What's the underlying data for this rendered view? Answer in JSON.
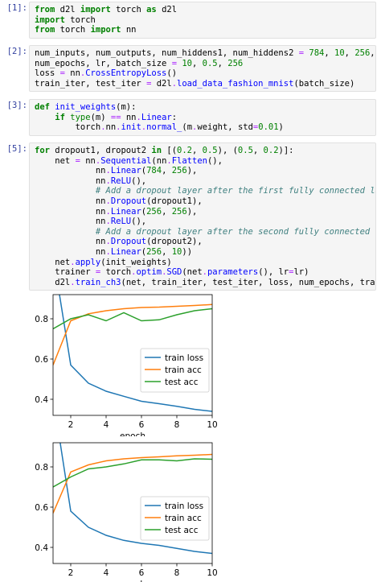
{
  "cells": [
    {
      "prompt": "[1]:",
      "lines": [
        [
          {
            "t": "from",
            "c": "kw"
          },
          {
            "t": " d2l "
          },
          {
            "t": "import",
            "c": "kw"
          },
          {
            "t": " torch "
          },
          {
            "t": "as",
            "c": "kw"
          },
          {
            "t": " d2l"
          }
        ],
        [
          {
            "t": "import",
            "c": "kw"
          },
          {
            "t": " torch"
          }
        ],
        [
          {
            "t": "from",
            "c": "kw"
          },
          {
            "t": " torch "
          },
          {
            "t": "import",
            "c": "kw"
          },
          {
            "t": " nn"
          }
        ]
      ]
    },
    {
      "prompt": "[2]:",
      "lines": [
        [
          {
            "t": "num_inputs, num_outputs, num_hiddens1, num_hiddens2 "
          },
          {
            "t": "=",
            "c": "op"
          },
          {
            "t": " "
          },
          {
            "t": "784",
            "c": "num"
          },
          {
            "t": ", "
          },
          {
            "t": "10",
            "c": "num"
          },
          {
            "t": ", "
          },
          {
            "t": "256",
            "c": "num"
          },
          {
            "t": ", "
          },
          {
            "t": "256",
            "c": "num"
          }
        ],
        [
          {
            "t": "num_epochs, lr, batch_size "
          },
          {
            "t": "=",
            "c": "op"
          },
          {
            "t": " "
          },
          {
            "t": "10",
            "c": "num"
          },
          {
            "t": ", "
          },
          {
            "t": "0.5",
            "c": "num"
          },
          {
            "t": ", "
          },
          {
            "t": "256",
            "c": "num"
          }
        ],
        [
          {
            "t": "loss "
          },
          {
            "t": "=",
            "c": "op"
          },
          {
            "t": " nn"
          },
          {
            "t": ".",
            "c": "op"
          },
          {
            "t": "CrossEntropyLoss",
            "c": "fn"
          },
          {
            "t": "()"
          }
        ],
        [
          {
            "t": "train_iter, test_iter "
          },
          {
            "t": "=",
            "c": "op"
          },
          {
            "t": " d2l"
          },
          {
            "t": ".",
            "c": "op"
          },
          {
            "t": "load_data_fashion_mnist",
            "c": "fn"
          },
          {
            "t": "(batch_size)"
          }
        ]
      ]
    },
    {
      "prompt": "[3]:",
      "lines": [
        [
          {
            "t": "def",
            "c": "kw"
          },
          {
            "t": " "
          },
          {
            "t": "init_weights",
            "c": "fn"
          },
          {
            "t": "(m):"
          }
        ],
        [
          {
            "t": "    "
          },
          {
            "t": "if",
            "c": "kw"
          },
          {
            "t": " "
          },
          {
            "t": "type",
            "c": "bi"
          },
          {
            "t": "(m) "
          },
          {
            "t": "==",
            "c": "op"
          },
          {
            "t": " nn"
          },
          {
            "t": ".",
            "c": "op"
          },
          {
            "t": "Linear",
            "c": "fn"
          },
          {
            "t": ":"
          }
        ],
        [
          {
            "t": "        torch"
          },
          {
            "t": ".",
            "c": "op"
          },
          {
            "t": "nn"
          },
          {
            "t": ".",
            "c": "op"
          },
          {
            "t": "init",
            "c": "fn"
          },
          {
            "t": ".",
            "c": "op"
          },
          {
            "t": "normal_",
            "c": "fn"
          },
          {
            "t": "(m"
          },
          {
            "t": ".",
            "c": "op"
          },
          {
            "t": "weight, std"
          },
          {
            "t": "=",
            "c": "op"
          },
          {
            "t": "0.01",
            "c": "num"
          },
          {
            "t": ")"
          }
        ]
      ]
    },
    {
      "prompt": "[5]:",
      "lines": [
        [
          {
            "t": "for",
            "c": "kw"
          },
          {
            "t": " dropout1, dropout2 "
          },
          {
            "t": "in",
            "c": "kw"
          },
          {
            "t": " [("
          },
          {
            "t": "0.2",
            "c": "num"
          },
          {
            "t": ", "
          },
          {
            "t": "0.5",
            "c": "num"
          },
          {
            "t": "), ("
          },
          {
            "t": "0.5",
            "c": "num"
          },
          {
            "t": ", "
          },
          {
            "t": "0.2",
            "c": "num"
          },
          {
            "t": ")]:"
          }
        ],
        [
          {
            "t": "    net "
          },
          {
            "t": "=",
            "c": "op"
          },
          {
            "t": " nn"
          },
          {
            "t": ".",
            "c": "op"
          },
          {
            "t": "Sequential",
            "c": "fn"
          },
          {
            "t": "(nn"
          },
          {
            "t": ".",
            "c": "op"
          },
          {
            "t": "Flatten",
            "c": "fn"
          },
          {
            "t": "(),"
          }
        ],
        [
          {
            "t": "            nn"
          },
          {
            "t": ".",
            "c": "op"
          },
          {
            "t": "Linear",
            "c": "fn"
          },
          {
            "t": "("
          },
          {
            "t": "784",
            "c": "num"
          },
          {
            "t": ", "
          },
          {
            "t": "256",
            "c": "num"
          },
          {
            "t": "),"
          }
        ],
        [
          {
            "t": "            nn"
          },
          {
            "t": ".",
            "c": "op"
          },
          {
            "t": "ReLU",
            "c": "fn"
          },
          {
            "t": "(),"
          }
        ],
        [
          {
            "t": "            "
          },
          {
            "t": "# Add a dropout layer after the first fully connected layer",
            "c": "cm"
          }
        ],
        [
          {
            "t": "            nn"
          },
          {
            "t": ".",
            "c": "op"
          },
          {
            "t": "Dropout",
            "c": "fn"
          },
          {
            "t": "(dropout1),"
          }
        ],
        [
          {
            "t": "            nn"
          },
          {
            "t": ".",
            "c": "op"
          },
          {
            "t": "Linear",
            "c": "fn"
          },
          {
            "t": "("
          },
          {
            "t": "256",
            "c": "num"
          },
          {
            "t": ", "
          },
          {
            "t": "256",
            "c": "num"
          },
          {
            "t": "),"
          }
        ],
        [
          {
            "t": "            nn"
          },
          {
            "t": ".",
            "c": "op"
          },
          {
            "t": "ReLU",
            "c": "fn"
          },
          {
            "t": "(),"
          }
        ],
        [
          {
            "t": "            "
          },
          {
            "t": "# Add a dropout layer after the second fully connected layer",
            "c": "cm"
          }
        ],
        [
          {
            "t": "            nn"
          },
          {
            "t": ".",
            "c": "op"
          },
          {
            "t": "Dropout",
            "c": "fn"
          },
          {
            "t": "(dropout2),"
          }
        ],
        [
          {
            "t": "            nn"
          },
          {
            "t": ".",
            "c": "op"
          },
          {
            "t": "Linear",
            "c": "fn"
          },
          {
            "t": "("
          },
          {
            "t": "256",
            "c": "num"
          },
          {
            "t": ", "
          },
          {
            "t": "10",
            "c": "num"
          },
          {
            "t": "))"
          }
        ],
        [
          {
            "t": "    net"
          },
          {
            "t": ".",
            "c": "op"
          },
          {
            "t": "apply",
            "c": "fn"
          },
          {
            "t": "(init_weights)"
          }
        ],
        [
          {
            "t": "    trainer "
          },
          {
            "t": "=",
            "c": "op"
          },
          {
            "t": " torch"
          },
          {
            "t": ".",
            "c": "op"
          },
          {
            "t": "optim",
            "c": "fn"
          },
          {
            "t": ".",
            "c": "op"
          },
          {
            "t": "SGD",
            "c": "fn"
          },
          {
            "t": "(net"
          },
          {
            "t": ".",
            "c": "op"
          },
          {
            "t": "parameters",
            "c": "fn"
          },
          {
            "t": "(), lr"
          },
          {
            "t": "=",
            "c": "op"
          },
          {
            "t": "lr)"
          }
        ],
        [
          {
            "t": "    d2l"
          },
          {
            "t": ".",
            "c": "op"
          },
          {
            "t": "train_ch3",
            "c": "fn"
          },
          {
            "t": "(net, train_iter, test_iter, loss, num_epochs, trainer)"
          }
        ]
      ]
    }
  ],
  "colors": {
    "train_loss": "#1f77b4",
    "train_acc": "#ff7f0e",
    "test_acc": "#2ca02c"
  },
  "chart_data": [
    {
      "type": "line",
      "xlabel": "epoch",
      "xlim": [
        1,
        10
      ],
      "ylim": [
        0.32,
        0.92
      ],
      "xticks": [
        2,
        4,
        6,
        8,
        10
      ],
      "yticks": [
        0.4,
        0.6,
        0.8
      ],
      "legend_position": "right",
      "x": [
        1,
        2,
        3,
        4,
        5,
        6,
        7,
        8,
        9,
        10
      ],
      "series": [
        {
          "name": "train loss",
          "color": "train_loss",
          "values": [
            1.12,
            0.57,
            0.48,
            0.44,
            0.415,
            0.39,
            0.378,
            0.365,
            0.35,
            0.34
          ]
        },
        {
          "name": "train acc",
          "color": "train_acc",
          "values": [
            0.57,
            0.79,
            0.825,
            0.84,
            0.85,
            0.856,
            0.858,
            0.862,
            0.866,
            0.871
          ]
        },
        {
          "name": "test acc",
          "color": "test_acc",
          "values": [
            0.75,
            0.8,
            0.82,
            0.79,
            0.83,
            0.79,
            0.795,
            0.82,
            0.84,
            0.85
          ]
        }
      ]
    },
    {
      "type": "line",
      "xlabel": "epoch",
      "xlim": [
        1,
        10
      ],
      "ylim": [
        0.32,
        0.92
      ],
      "xticks": [
        2,
        4,
        6,
        8,
        10
      ],
      "yticks": [
        0.4,
        0.6,
        0.8
      ],
      "legend_position": "right",
      "x": [
        1,
        2,
        3,
        4,
        5,
        6,
        7,
        8,
        9,
        10
      ],
      "series": [
        {
          "name": "train loss",
          "color": "train_loss",
          "values": [
            1.15,
            0.58,
            0.5,
            0.46,
            0.435,
            0.42,
            0.41,
            0.395,
            0.38,
            0.37
          ]
        },
        {
          "name": "train acc",
          "color": "train_acc",
          "values": [
            0.57,
            0.775,
            0.81,
            0.83,
            0.84,
            0.846,
            0.85,
            0.855,
            0.858,
            0.862
          ]
        },
        {
          "name": "test acc",
          "color": "test_acc",
          "values": [
            0.7,
            0.75,
            0.79,
            0.8,
            0.815,
            0.835,
            0.835,
            0.83,
            0.84,
            0.838
          ]
        }
      ]
    }
  ]
}
